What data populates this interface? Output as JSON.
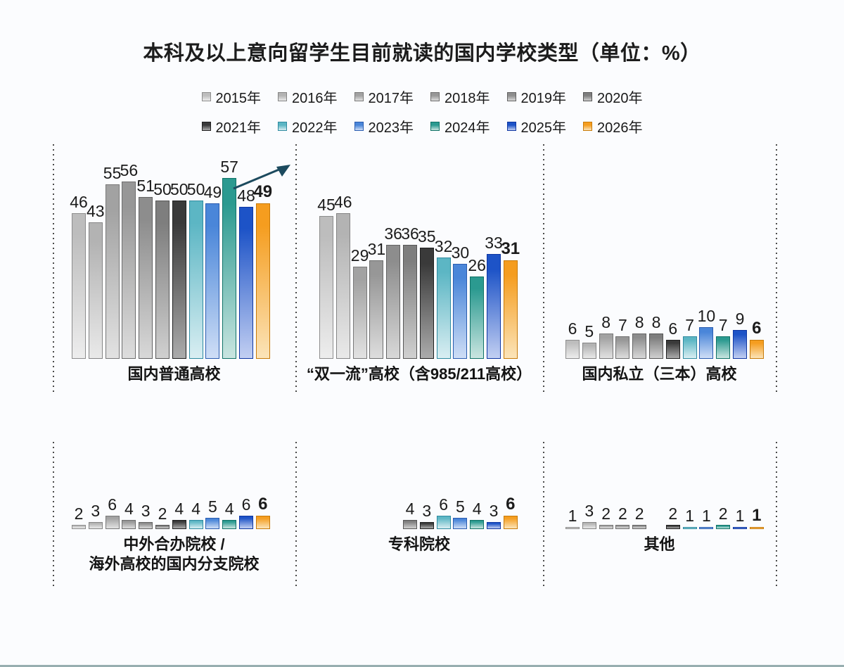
{
  "title": "本科及以上意向留学生目前就读的国内学校类型（单位：%）",
  "years": [
    {
      "label": "2015年",
      "color": "#bdbdbd",
      "fade": "#ededed",
      "border": "#8d8d8d"
    },
    {
      "label": "2016年",
      "color": "#b3b3b3",
      "fade": "#e9e9e9",
      "border": "#858585"
    },
    {
      "label": "2017年",
      "color": "#a2a2a2",
      "fade": "#e2e2e2",
      "border": "#787878"
    },
    {
      "label": "2018年",
      "color": "#979797",
      "fade": "#dddddd",
      "border": "#6e6e6e"
    },
    {
      "label": "2019年",
      "color": "#8d8d8d",
      "fade": "#d8d8d8",
      "border": "#636363"
    },
    {
      "label": "2020年",
      "color": "#7e7e7e",
      "fade": "#d0d0d0",
      "border": "#565656"
    },
    {
      "label": "2021年",
      "color": "#3a3a3a",
      "fade": "#ababab",
      "border": "#1f1f1f"
    },
    {
      "label": "2022年",
      "color": "#5cb6c4",
      "fade": "#d9eef2",
      "border": "#2f8ba0"
    },
    {
      "label": "2023年",
      "color": "#4a86d9",
      "fade": "#cfdef6",
      "border": "#2a5cb0"
    },
    {
      "label": "2024年",
      "color": "#2b9a90",
      "fade": "#c9e5e0",
      "border": "#0f7266"
    },
    {
      "label": "2025年",
      "color": "#1d53c7",
      "fade": "#c2cff2",
      "border": "#0e36a2"
    },
    {
      "label": "2026年",
      "color": "#f59d1f",
      "fade": "#fbe4b9",
      "border": "#c87a08"
    }
  ],
  "chart_data": {
    "type": "bar",
    "title": "本科及以上意向留学生目前就读的国内学校类型",
    "unit": "%",
    "legend_position": "top",
    "grid": false,
    "categories": [
      "2015年",
      "2016年",
      "2017年",
      "2018年",
      "2019年",
      "2020年",
      "2021年",
      "2022年",
      "2023年",
      "2024年",
      "2025年",
      "2026年"
    ],
    "emphasis_category": "2026年",
    "groups": [
      {
        "label": "国内普通高校",
        "label_lines": [
          "国内普通高校"
        ],
        "values": [
          46,
          43,
          55,
          56,
          51,
          50,
          50,
          50,
          49,
          57,
          48,
          49
        ],
        "trend_arrow": true
      },
      {
        "label": "“双一流”高校（含985/211高校）",
        "label_lines": [
          "“双一流”高校（含985/211高校）"
        ],
        "values": [
          45,
          46,
          29,
          31,
          36,
          36,
          35,
          32,
          30,
          26,
          33,
          31
        ]
      },
      {
        "label": "国内私立（三本）高校",
        "label_lines": [
          "国内私立（三本）高校"
        ],
        "values": [
          6,
          5,
          8,
          7,
          8,
          8,
          6,
          7,
          10,
          7,
          9,
          6
        ]
      },
      {
        "label": "中外合办院校 / 海外高校的国内分支院校",
        "label_lines": [
          "中外合办院校 /",
          "海外高校的国内分支院校"
        ],
        "values": [
          2,
          3,
          6,
          4,
          3,
          2,
          4,
          4,
          5,
          4,
          6,
          6
        ]
      },
      {
        "label": "专科院校",
        "label_lines": [
          "专科院校"
        ],
        "values": [
          null,
          null,
          null,
          null,
          null,
          4,
          3,
          6,
          5,
          4,
          3,
          6
        ]
      },
      {
        "label": "其他",
        "label_lines": [
          "其他"
        ],
        "values": [
          1,
          3,
          2,
          2,
          2,
          null,
          2,
          1,
          1,
          2,
          1,
          1
        ]
      }
    ],
    "arrow_color": "#1c4a5e"
  }
}
